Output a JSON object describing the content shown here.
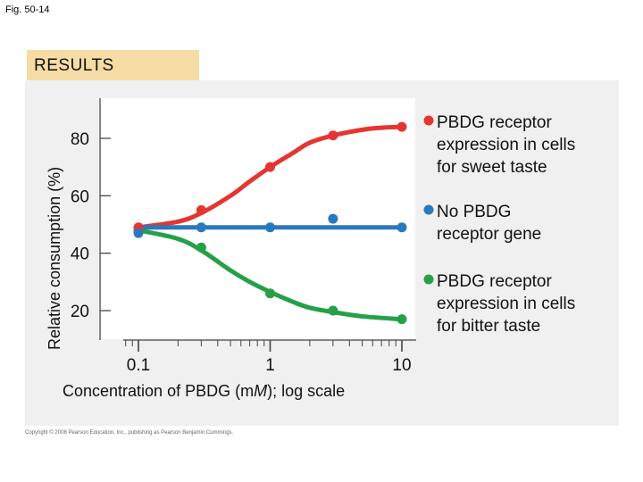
{
  "figure_label": "Fig. 50-14",
  "banner": "RESULTS",
  "copyright": "Copyright © 2008 Pearson Education, Inc., publishing as Pearson Benjamin Cummings.",
  "colors": {
    "sweet": "#e53532",
    "none": "#2a79be",
    "bitter": "#26a048",
    "banner": "#f5dca5",
    "panel": "#f0f0f0"
  },
  "chart_data": {
    "type": "line",
    "title": "",
    "xlabel_parts": [
      "Concentration of PBDG (m",
      "M",
      "); log scale"
    ],
    "ylabel": "Relative consumption (%)",
    "x_scale": "log",
    "xlim": [
      0.07,
      15
    ],
    "ylim": [
      9,
      99
    ],
    "x_ticks": [
      0.1,
      1,
      10
    ],
    "x_tick_labels": [
      "0.1",
      "1",
      "10"
    ],
    "y_ticks": [
      20,
      40,
      60,
      80
    ],
    "y_tick_labels": [
      "20",
      "40",
      "60",
      "80"
    ],
    "grid": false,
    "legend_position": "right",
    "series": [
      {
        "key": "sweet",
        "label_lines": [
          "PBDG receptor",
          "expression in cells",
          "for sweet taste"
        ],
        "points": [
          [
            0.1,
            49
          ],
          [
            0.3,
            55
          ],
          [
            1,
            70
          ],
          [
            3,
            81
          ],
          [
            10,
            84
          ]
        ],
        "curve": [
          [
            0.1,
            49
          ],
          [
            0.2,
            51
          ],
          [
            0.3,
            54
          ],
          [
            0.5,
            60
          ],
          [
            0.7,
            65
          ],
          [
            1,
            70
          ],
          [
            1.5,
            75
          ],
          [
            2,
            78.5
          ],
          [
            3,
            81
          ],
          [
            5,
            83
          ],
          [
            7,
            83.7
          ],
          [
            10,
            84
          ]
        ]
      },
      {
        "key": "none",
        "label_lines": [
          "No PBDG",
          "receptor gene"
        ],
        "points": [
          [
            0.1,
            47
          ],
          [
            0.3,
            49
          ],
          [
            1,
            49
          ],
          [
            3,
            52
          ],
          [
            10,
            49
          ]
        ],
        "curve": [
          [
            0.1,
            49
          ],
          [
            10,
            49
          ]
        ]
      },
      {
        "key": "bitter",
        "label_lines": [
          "PBDG receptor",
          "expression in cells",
          "for bitter taste"
        ],
        "points": [
          [
            0.1,
            48
          ],
          [
            0.3,
            42
          ],
          [
            1,
            26
          ],
          [
            3,
            20
          ],
          [
            10,
            17
          ]
        ],
        "curve": [
          [
            0.1,
            48
          ],
          [
            0.2,
            45
          ],
          [
            0.3,
            41
          ],
          [
            0.5,
            34
          ],
          [
            0.7,
            30
          ],
          [
            1,
            26.5
          ],
          [
            1.5,
            23
          ],
          [
            2,
            21
          ],
          [
            3,
            19.5
          ],
          [
            5,
            18
          ],
          [
            10,
            17
          ]
        ]
      }
    ]
  }
}
